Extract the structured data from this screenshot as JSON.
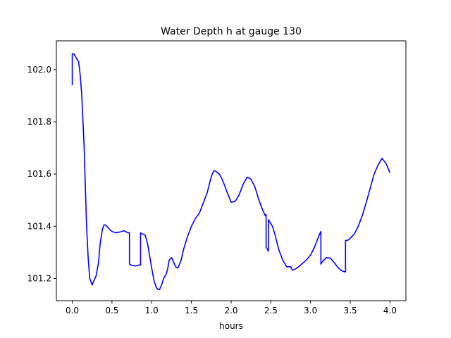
{
  "chart_data": {
    "type": "line",
    "title": "Water Depth h at gauge 130",
    "xlabel": "hours",
    "ylabel": "",
    "xlim": [
      -0.2,
      4.2
    ],
    "ylim": [
      101.115,
      102.11
    ],
    "xticks": [
      0.0,
      0.5,
      1.0,
      1.5,
      2.0,
      2.5,
      3.0,
      3.5,
      4.0
    ],
    "xtick_labels": [
      "0.0",
      "0.5",
      "1.0",
      "1.5",
      "2.0",
      "2.5",
      "3.0",
      "3.5",
      "4.0"
    ],
    "yticks": [
      101.2,
      101.4,
      101.6,
      101.8,
      102.0
    ],
    "ytick_labels": [
      "101.2",
      "101.4",
      "101.6",
      "101.8",
      "102.0"
    ],
    "grid": false,
    "series": [
      {
        "color": "#0000ff",
        "x": [
          0.0,
          0.0,
          0.02,
          0.05,
          0.08,
          0.1,
          0.12,
          0.15,
          0.18,
          0.2,
          0.22,
          0.25,
          0.27,
          0.3,
          0.33,
          0.35,
          0.38,
          0.4,
          0.42,
          0.45,
          0.48,
          0.5,
          0.55,
          0.6,
          0.65,
          0.7,
          0.72,
          0.72,
          0.75,
          0.8,
          0.85,
          0.86,
          0.86,
          0.88,
          0.9,
          0.92,
          0.95,
          1.0,
          1.03,
          1.06,
          1.08,
          1.1,
          1.13,
          1.15,
          1.18,
          1.2,
          1.22,
          1.25,
          1.28,
          1.3,
          1.33,
          1.37,
          1.4,
          1.45,
          1.5,
          1.55,
          1.6,
          1.65,
          1.7,
          1.75,
          1.78,
          1.8,
          1.85,
          1.88,
          1.9,
          1.95,
          2.0,
          2.05,
          2.1,
          2.15,
          2.2,
          2.25,
          2.3,
          2.35,
          2.4,
          2.43,
          2.44,
          2.44,
          2.47,
          2.47,
          2.5,
          2.52,
          2.55,
          2.6,
          2.65,
          2.7,
          2.75,
          2.77,
          2.8,
          2.85,
          2.9,
          2.95,
          3.0,
          3.05,
          3.1,
          3.13,
          3.13,
          3.15,
          3.2,
          3.25,
          3.3,
          3.35,
          3.4,
          3.44,
          3.44,
          3.48,
          3.55,
          3.6,
          3.65,
          3.7,
          3.75,
          3.8,
          3.85,
          3.9,
          3.95,
          4.0
        ],
        "y": [
          101.94,
          102.06,
          102.06,
          102.045,
          102.03,
          101.98,
          101.9,
          101.7,
          101.4,
          101.28,
          101.2,
          101.175,
          101.19,
          101.21,
          101.26,
          101.33,
          101.39,
          101.405,
          101.405,
          101.395,
          101.385,
          101.38,
          101.375,
          101.378,
          101.383,
          101.375,
          101.375,
          101.255,
          101.25,
          101.248,
          101.252,
          101.252,
          101.375,
          101.37,
          101.37,
          101.365,
          101.33,
          101.24,
          101.19,
          101.165,
          101.158,
          101.158,
          101.18,
          101.2,
          101.215,
          101.235,
          101.27,
          101.28,
          101.26,
          101.245,
          101.24,
          101.27,
          101.31,
          101.36,
          101.4,
          101.43,
          101.45,
          101.49,
          101.53,
          101.59,
          101.612,
          101.612,
          101.6,
          101.585,
          101.57,
          101.53,
          101.492,
          101.495,
          101.52,
          101.56,
          101.588,
          101.58,
          101.55,
          101.5,
          101.46,
          101.44,
          101.445,
          101.32,
          101.305,
          101.425,
          101.41,
          101.4,
          101.37,
          101.31,
          101.27,
          101.245,
          101.245,
          101.232,
          101.235,
          101.245,
          101.258,
          101.272,
          101.29,
          101.32,
          101.36,
          101.38,
          101.255,
          101.265,
          101.28,
          101.278,
          101.26,
          101.24,
          101.228,
          101.225,
          101.345,
          101.348,
          101.37,
          101.4,
          101.44,
          101.49,
          101.545,
          101.6,
          101.635,
          101.66,
          101.64,
          101.605
        ]
      }
    ]
  }
}
